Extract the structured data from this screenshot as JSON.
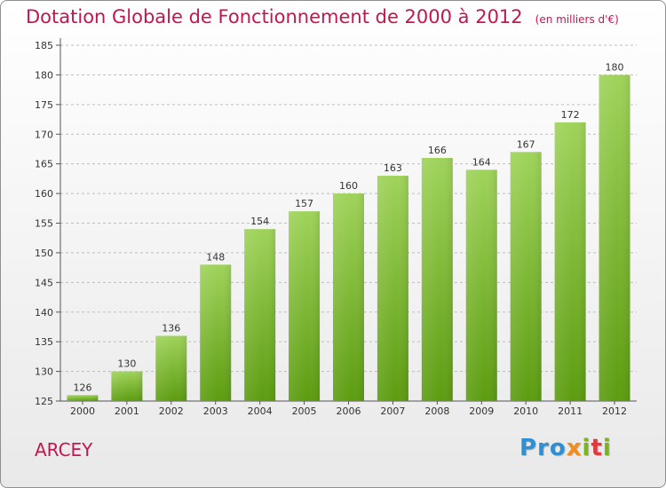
{
  "header": {
    "title": "Dotation Globale de Fonctionnement de 2000 à 2012",
    "subtitle": "(en milliers d'€)"
  },
  "footer": {
    "city": "ARCEY",
    "logo": {
      "p1": "Pro",
      "x": "x",
      "i1": "i",
      "t": "t",
      "i2": "i"
    }
  },
  "colors": {
    "title": "#c4164e",
    "bar_light": "#9ed255",
    "bar_dark": "#5f9f12",
    "grid": "#bdbdbd"
  },
  "chart_data": {
    "type": "bar",
    "categories": [
      "2000",
      "2001",
      "2002",
      "2003",
      "2004",
      "2005",
      "2006",
      "2007",
      "2008",
      "2009",
      "2010",
      "2011",
      "2012"
    ],
    "values": [
      126,
      130,
      136,
      148,
      154,
      157,
      160,
      163,
      166,
      164,
      167,
      172,
      180
    ],
    "title": "Dotation Globale de Fonctionnement de 2000 à 2012",
    "subtitle": "(en milliers d'€)",
    "xlabel": "",
    "ylabel": "",
    "ylim": [
      125,
      185
    ],
    "yticks": [
      125,
      130,
      135,
      140,
      145,
      150,
      155,
      160,
      165,
      170,
      175,
      180,
      185
    ],
    "grid": true,
    "data_labels": true
  }
}
